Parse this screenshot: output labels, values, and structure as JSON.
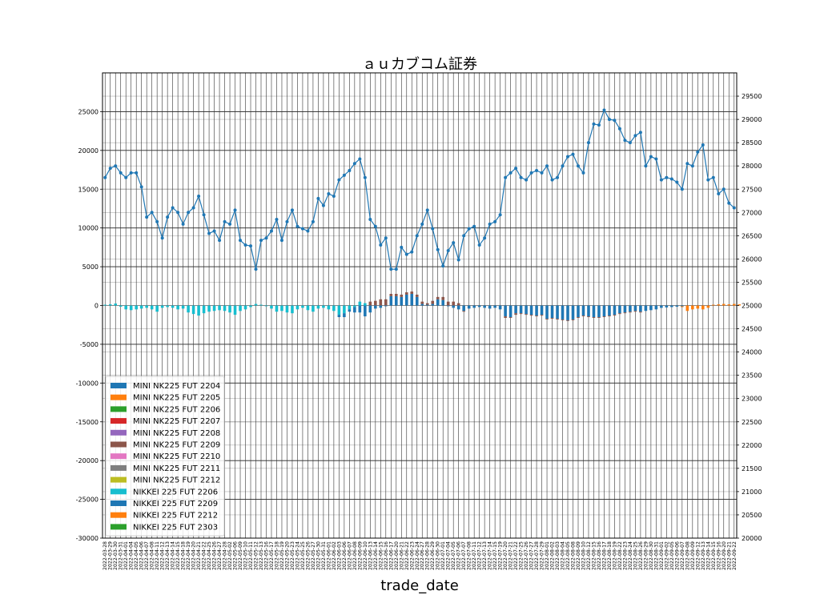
{
  "chart_data": {
    "type": "bar+line",
    "title": "ａｕカブコム証券",
    "xlabel": "trade_date",
    "ylabel": "",
    "ylim": [
      -30000,
      30000
    ],
    "y_ticks": [
      -30000,
      -25000,
      -20000,
      -15000,
      -10000,
      -5000,
      0,
      5000,
      10000,
      15000,
      20000,
      25000
    ],
    "y2lim": [
      20000,
      30000
    ],
    "y2_ticks": [
      20000,
      20500,
      21000,
      21500,
      22000,
      22500,
      23000,
      23500,
      24000,
      24500,
      25000,
      25500,
      26000,
      26500,
      27000,
      27500,
      28000,
      28500,
      29000,
      29500
    ],
    "grid": true,
    "legend_position": "lower-left",
    "dates": [
      "2022-03-28",
      "2022-03-29",
      "2022-03-30",
      "2022-03-31",
      "2022-04-01",
      "2022-04-04",
      "2022-04-05",
      "2022-04-06",
      "2022-04-07",
      "2022-04-08",
      "2022-04-11",
      "2022-04-12",
      "2022-04-13",
      "2022-04-14",
      "2022-04-15",
      "2022-04-18",
      "2022-04-19",
      "2022-04-20",
      "2022-04-21",
      "2022-04-22",
      "2022-04-25",
      "2022-04-26",
      "2022-04-27",
      "2022-04-28",
      "2022-05-02",
      "2022-05-06",
      "2022-05-09",
      "2022-05-10",
      "2022-05-11",
      "2022-05-12",
      "2022-05-13",
      "2022-05-16",
      "2022-05-17",
      "2022-05-18",
      "2022-05-19",
      "2022-05-20",
      "2022-05-23",
      "2022-05-24",
      "2022-05-25",
      "2022-05-26",
      "2022-05-27",
      "2022-05-30",
      "2022-05-31",
      "2022-06-01",
      "2022-06-02",
      "2022-06-03",
      "2022-06-06",
      "2022-06-07",
      "2022-06-08",
      "2022-06-09",
      "2022-06-10",
      "2022-06-13",
      "2022-06-14",
      "2022-06-15",
      "2022-06-16",
      "2022-06-17",
      "2022-06-20",
      "2022-06-21",
      "2022-06-22",
      "2022-06-23",
      "2022-06-24",
      "2022-06-27",
      "2022-06-28",
      "2022-06-29",
      "2022-06-30",
      "2022-07-01",
      "2022-07-04",
      "2022-07-05",
      "2022-07-06",
      "2022-07-07",
      "2022-07-08",
      "2022-07-11",
      "2022-07-12",
      "2022-07-13",
      "2022-07-14",
      "2022-07-15",
      "2022-07-19",
      "2022-07-20",
      "2022-07-21",
      "2022-07-22",
      "2022-07-25",
      "2022-07-26",
      "2022-07-27",
      "2022-07-28",
      "2022-07-29",
      "2022-08-01",
      "2022-08-02",
      "2022-08-03",
      "2022-08-04",
      "2022-08-05",
      "2022-08-08",
      "2022-08-09",
      "2022-08-10",
      "2022-08-12",
      "2022-08-15",
      "2022-08-16",
      "2022-08-17",
      "2022-08-18",
      "2022-08-19",
      "2022-08-22",
      "2022-08-23",
      "2022-08-24",
      "2022-08-25",
      "2022-08-26",
      "2022-08-29",
      "2022-08-30",
      "2022-08-31",
      "2022-09-01",
      "2022-09-02",
      "2022-09-05",
      "2022-09-06",
      "2022-09-07",
      "2022-09-08",
      "2022-09-09",
      "2022-09-12",
      "2022-09-13",
      "2022-09-14",
      "2022-09-15",
      "2022-09-16",
      "2022-09-20",
      "2022-09-21",
      "2022-09-22"
    ],
    "line": {
      "values": [
        27750,
        27950,
        28000,
        27850,
        27750,
        27850,
        27850,
        27550,
        26900,
        27000,
        26800,
        26450,
        26900,
        27100,
        27000,
        26750,
        27000,
        27100,
        27350,
        26950,
        26550,
        26600,
        26400,
        26800,
        26750,
        27050,
        26400,
        26300,
        26280,
        25780,
        26400,
        26450,
        26600,
        26850,
        26400,
        26800,
        27050,
        26700,
        26650,
        26600,
        26800,
        27300,
        27150,
        27400,
        27350,
        27700,
        27800,
        27900,
        28050,
        28150,
        27750,
        26850,
        26700,
        26300,
        26450,
        25780,
        25780,
        26250,
        26100,
        26150,
        26500,
        26750,
        27050,
        26650,
        26200,
        25850,
        26180,
        26350,
        25980,
        26500,
        26650,
        26700,
        26300,
        26450,
        26750,
        26800,
        26950,
        27750,
        27850,
        27950,
        27750,
        27700,
        27850,
        27900,
        27850,
        28000,
        27700,
        27750,
        28000,
        28200,
        28250,
        28000,
        27850,
        28500,
        28900,
        28880,
        29200,
        29000,
        28980,
        28800,
        28550,
        28500,
        28650,
        28720,
        28000,
        28200,
        28150,
        27700,
        27750,
        27720,
        27650,
        27500,
        28050,
        28000,
        28300,
        28450,
        27700,
        27750,
        27400,
        27500,
        27200,
        27100
      ]
    },
    "series": [
      {
        "name": "MINI NK225 FUT 2204",
        "color": "#1f77b4"
      },
      {
        "name": "MINI NK225 FUT 2205",
        "color": "#ff7f0e"
      },
      {
        "name": "MINI NK225 FUT 2206",
        "color": "#2ca02c"
      },
      {
        "name": "MINI NK225 FUT 2207",
        "color": "#d62728"
      },
      {
        "name": "MINI NK225 FUT 2208",
        "color": "#9467bd"
      },
      {
        "name": "MINI NK225 FUT 2209",
        "color": "#8c564b"
      },
      {
        "name": "MINI NK225 FUT 2210",
        "color": "#e377c2"
      },
      {
        "name": "MINI NK225 FUT 2211",
        "color": "#7f7f7f"
      },
      {
        "name": "MINI NK225 FUT 2212",
        "color": "#bcbd22"
      },
      {
        "name": "NIKKEI 225 FUT 2206",
        "color": "#17becf"
      },
      {
        "name": "NIKKEI 225 FUT 2209",
        "color": "#1f77b4"
      },
      {
        "name": "NIKKEI 225 FUT 2212",
        "color": "#ff7f0e"
      },
      {
        "name": "NIKKEI 225 FUT 2303",
        "color": "#2ca02c"
      }
    ],
    "bars": [
      [
        [
          9,
          100
        ]
      ],
      [
        [
          9,
          150
        ]
      ],
      [
        [
          9,
          250
        ]
      ],
      [
        [
          9,
          -150
        ]
      ],
      [
        [
          9,
          -500
        ]
      ],
      [
        [
          9,
          -600
        ]
      ],
      [
        [
          9,
          -500
        ]
      ],
      [
        [
          9,
          -400
        ]
      ],
      [
        [
          9,
          -300
        ]
      ],
      [
        [
          9,
          -500
        ]
      ],
      [
        [
          9,
          -800
        ]
      ],
      [
        [
          9,
          -300
        ]
      ],
      [
        [
          9,
          -200
        ]
      ],
      [
        [
          9,
          -300
        ]
      ],
      [
        [
          9,
          -500
        ]
      ],
      [
        [
          9,
          -400
        ]
      ],
      [
        [
          9,
          -900
        ]
      ],
      [
        [
          9,
          -1100
        ]
      ],
      [
        [
          9,
          -1300
        ]
      ],
      [
        [
          9,
          -1000
        ]
      ],
      [
        [
          9,
          -800
        ]
      ],
      [
        [
          9,
          -700
        ]
      ],
      [
        [
          9,
          -600
        ]
      ],
      [
        [
          9,
          -700
        ]
      ],
      [
        [
          9,
          -900
        ]
      ],
      [
        [
          9,
          -1200
        ]
      ],
      [
        [
          9,
          -700
        ]
      ],
      [
        [
          9,
          -500
        ]
      ],
      [
        [
          9,
          -200
        ]
      ],
      [
        [
          9,
          200
        ]
      ],
      [
        [
          9,
          100
        ]
      ],
      [
        [
          9,
          -100
        ]
      ],
      [
        [
          9,
          -400
        ]
      ],
      [
        [
          9,
          -800
        ]
      ],
      [
        [
          9,
          -700
        ]
      ],
      [
        [
          9,
          -900
        ]
      ],
      [
        [
          9,
          -1000
        ]
      ],
      [
        [
          9,
          -500
        ]
      ],
      [
        [
          9,
          -300
        ]
      ],
      [
        [
          9,
          -600
        ]
      ],
      [
        [
          9,
          -800
        ]
      ],
      [
        [
          9,
          -400
        ]
      ],
      [
        [
          9,
          -300
        ]
      ],
      [
        [
          9,
          -500
        ]
      ],
      [
        [
          9,
          -700
        ]
      ],
      [
        [
          9,
          -1200
        ],
        [
          10,
          -300
        ]
      ],
      [
        [
          9,
          -1000
        ],
        [
          10,
          -500
        ]
      ],
      [
        [
          9,
          -500
        ],
        [
          10,
          -300
        ]
      ],
      [
        [
          9,
          -200
        ],
        [
          10,
          -700
        ]
      ],
      [
        [
          9,
          500
        ],
        [
          10,
          -900
        ]
      ],
      [
        [
          9,
          300
        ],
        [
          10,
          -1400
        ]
      ],
      [
        [
          10,
          -900
        ],
        [
          5,
          500
        ]
      ],
      [
        [
          10,
          -400
        ],
        [
          5,
          600
        ]
      ],
      [
        [
          10,
          -300
        ],
        [
          5,
          800
        ]
      ],
      [
        [
          10,
          -100
        ],
        [
          5,
          800
        ]
      ],
      [
        [
          10,
          1200
        ],
        [
          5,
          300
        ]
      ],
      [
        [
          10,
          1200
        ],
        [
          5,
          300
        ]
      ],
      [
        [
          10,
          1100
        ],
        [
          5,
          300
        ]
      ],
      [
        [
          10,
          1400
        ],
        [
          5,
          300
        ]
      ],
      [
        [
          10,
          1500
        ],
        [
          5,
          300
        ]
      ],
      [
        [
          10,
          1100
        ],
        [
          5,
          300
        ]
      ],
      [
        [
          10,
          200
        ],
        [
          5,
          300
        ]
      ],
      [
        [
          10,
          100
        ],
        [
          5,
          200
        ]
      ],
      [
        [
          10,
          200
        ],
        [
          5,
          400
        ]
      ],
      [
        [
          10,
          800
        ],
        [
          5,
          300
        ]
      ],
      [
        [
          10,
          700
        ],
        [
          5,
          400
        ]
      ],
      [
        [
          10,
          -100
        ],
        [
          5,
          500
        ]
      ],
      [
        [
          10,
          -300
        ],
        [
          5,
          500
        ]
      ],
      [
        [
          10,
          -500
        ],
        [
          5,
          300
        ]
      ],
      [
        [
          10,
          -700
        ],
        [
          5,
          -100
        ]
      ],
      [
        [
          10,
          -400
        ]
      ],
      [
        [
          10,
          -300
        ]
      ],
      [
        [
          10,
          -200
        ]
      ],
      [
        [
          10,
          -300
        ]
      ],
      [
        [
          10,
          -400
        ]
      ],
      [
        [
          10,
          -300
        ]
      ],
      [
        [
          10,
          -500
        ]
      ],
      [
        [
          10,
          -1400
        ],
        [
          5,
          -200
        ]
      ],
      [
        [
          10,
          -1500
        ],
        [
          5,
          -100
        ]
      ],
      [
        [
          10,
          -1000
        ],
        [
          5,
          -200
        ]
      ],
      [
        [
          10,
          -1000
        ],
        [
          5,
          -100
        ]
      ],
      [
        [
          10,
          -1100
        ],
        [
          5,
          -100
        ]
      ],
      [
        [
          10,
          -1200
        ],
        [
          5,
          -100
        ]
      ],
      [
        [
          10,
          -1300
        ],
        [
          5,
          -100
        ]
      ],
      [
        [
          10,
          -1200
        ],
        [
          5,
          -100
        ]
      ],
      [
        [
          10,
          -1700
        ],
        [
          5,
          -100
        ]
      ],
      [
        [
          10,
          -1600
        ],
        [
          5,
          -100
        ]
      ],
      [
        [
          10,
          -1700
        ],
        [
          5,
          -100
        ]
      ],
      [
        [
          10,
          -1800
        ],
        [
          5,
          -100
        ]
      ],
      [
        [
          10,
          -1900
        ],
        [
          5,
          -100
        ]
      ],
      [
        [
          10,
          -1800
        ],
        [
          5,
          -100
        ]
      ],
      [
        [
          10,
          -1500
        ],
        [
          5,
          -100
        ]
      ],
      [
        [
          10,
          -1300
        ],
        [
          5,
          -100
        ]
      ],
      [
        [
          10,
          -1400
        ],
        [
          5,
          -100
        ]
      ],
      [
        [
          10,
          -1500
        ],
        [
          5,
          -100
        ]
      ],
      [
        [
          10,
          -1500
        ],
        [
          5,
          -100
        ]
      ],
      [
        [
          10,
          -1400
        ],
        [
          5,
          -100
        ]
      ],
      [
        [
          10,
          -1300
        ],
        [
          5,
          -100
        ]
      ],
      [
        [
          10,
          -1200
        ],
        [
          5,
          -100
        ]
      ],
      [
        [
          10,
          -1000
        ],
        [
          5,
          -100
        ]
      ],
      [
        [
          10,
          -900
        ],
        [
          5,
          -100
        ]
      ],
      [
        [
          10,
          -800
        ],
        [
          5,
          -100
        ]
      ],
      [
        [
          10,
          -700
        ],
        [
          5,
          -100
        ]
      ],
      [
        [
          10,
          -800
        ],
        [
          5,
          -100
        ]
      ],
      [
        [
          10,
          -700
        ]
      ],
      [
        [
          10,
          -600
        ]
      ],
      [
        [
          10,
          -500
        ]
      ],
      [
        [
          10,
          -300
        ]
      ],
      [
        [
          10,
          -250
        ]
      ],
      [
        [
          10,
          -200
        ]
      ],
      [
        [
          10,
          -150
        ]
      ],
      [
        [
          10,
          -100
        ],
        [
          11,
          -100
        ]
      ],
      [
        [
          11,
          -700
        ]
      ],
      [
        [
          11,
          -500
        ]
      ],
      [
        [
          11,
          -400
        ]
      ],
      [
        [
          11,
          -500
        ]
      ],
      [
        [
          11,
          -300
        ]
      ],
      [
        [
          11,
          100
        ]
      ],
      [
        [
          11,
          150
        ]
      ],
      [
        [
          11,
          200
        ]
      ],
      [
        [
          11,
          150
        ]
      ],
      [
        [
          11,
          200
        ]
      ],
      [
        [
          11,
          150
        ]
      ]
    ]
  }
}
